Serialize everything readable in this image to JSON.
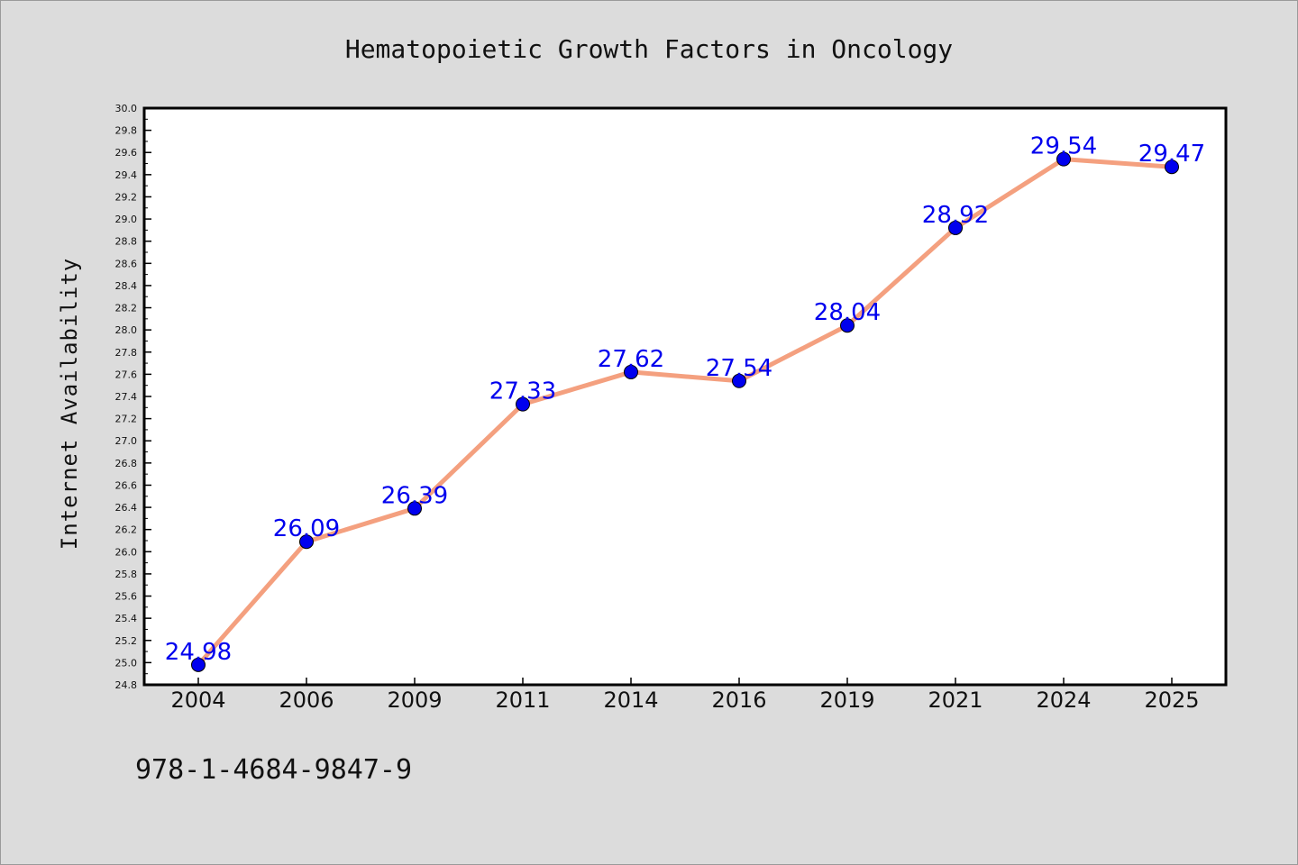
{
  "chart_data": {
    "type": "line",
    "title": "Hematopoietic Growth Factors in Oncology",
    "xlabel": "",
    "ylabel": "Internet Availability",
    "categories": [
      "2004",
      "2006",
      "2009",
      "2011",
      "2014",
      "2016",
      "2019",
      "2021",
      "2024",
      "2025"
    ],
    "values": [
      24.98,
      26.09,
      26.39,
      27.33,
      27.62,
      27.54,
      28.04,
      28.92,
      29.54,
      29.47
    ],
    "data_labels": [
      "24.98",
      "26.09",
      "26.39",
      "27.33",
      "27.62",
      "27.54",
      "28.04",
      "28.92",
      "29.54",
      "29.47"
    ],
    "ylim": [
      24.8,
      30.0
    ],
    "y_ticks": [
      "24.8",
      "25.0",
      "25.2",
      "25.4",
      "25.6",
      "25.8",
      "26.0",
      "26.2",
      "26.4",
      "26.6",
      "26.8",
      "27.0",
      "27.2",
      "27.4",
      "27.6",
      "27.8",
      "28.0",
      "28.2",
      "28.4",
      "28.6",
      "28.8",
      "29.0",
      "29.2",
      "29.4",
      "29.6",
      "29.8",
      "30.0"
    ],
    "grid": false,
    "legend": "none",
    "colors": {
      "line": "#f4a07f",
      "marker": "#0000ee",
      "label": "#0000ee",
      "background": "#dcdcdc",
      "plot_background": "#ffffff"
    }
  },
  "footer": {
    "isbn": "978-1-4684-9847-9"
  }
}
